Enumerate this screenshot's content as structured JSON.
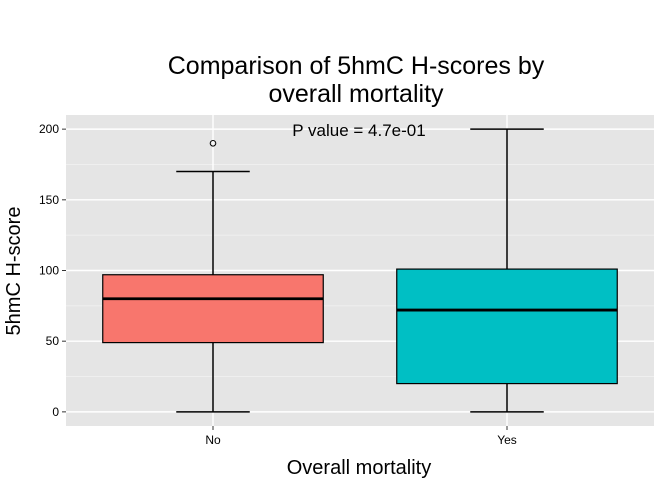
{
  "chart_data": {
    "type": "boxplot",
    "title_line1": "Comparison of 5hmC H-scores by",
    "title_line2": "overall mortality",
    "xlabel": "Overall mortality",
    "ylabel": "5hmC H-score",
    "ylim": [
      -10,
      210
    ],
    "yticks": [
      0,
      50,
      100,
      150,
      200
    ],
    "ytick_labels": [
      "0",
      "50",
      "100",
      "150",
      "200"
    ],
    "categories": [
      "No",
      "Yes"
    ],
    "boxes": [
      {
        "category": "No",
        "min": 0,
        "q1": 49,
        "median": 80,
        "q3": 97,
        "max": 170,
        "outliers": [
          190
        ],
        "color": "#F8766D"
      },
      {
        "category": "Yes",
        "min": 0,
        "q1": 20,
        "median": 72,
        "q3": 101,
        "max": 200,
        "outliers": [],
        "color": "#00BFC4"
      }
    ],
    "annotation": "P value = 4.7e-01",
    "panel_background": "#E5E5E5",
    "grid": true
  }
}
